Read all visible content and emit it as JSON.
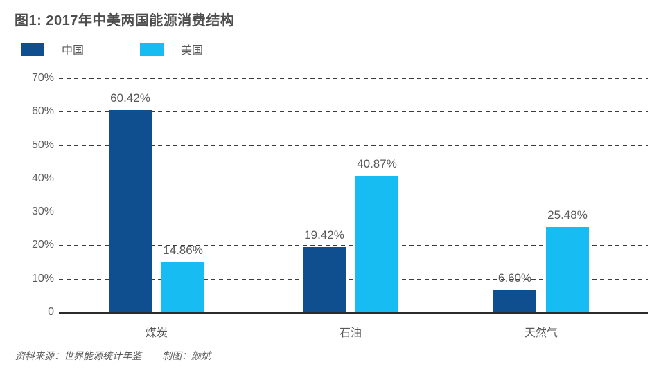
{
  "title": "图1: 2017年中美两国能源消费结构",
  "legend": {
    "items": [
      {
        "label": "中国",
        "color": "#0f4f90"
      },
      {
        "label": "美国",
        "color": "#16bcf2"
      }
    ]
  },
  "footer": {
    "source": "资料来源：世界能源统计年鉴",
    "credit": "制图：颜斌"
  },
  "colors": {
    "china_bar": "#0f4f90",
    "us_bar": "#16bcf2",
    "text_gray": "#595959",
    "title_gray": "#4d4d4d"
  },
  "chart_data": {
    "type": "bar",
    "title": "图1: 2017年中美两国能源消费结构",
    "categories": [
      "煤炭",
      "石油",
      "天然气"
    ],
    "series": [
      {
        "name": "中国",
        "color": "#0f4f90",
        "values": [
          60.42,
          19.42,
          6.6
        ]
      },
      {
        "name": "美国",
        "color": "#16bcf2",
        "values": [
          14.86,
          40.87,
          25.48
        ]
      }
    ],
    "labels": [
      [
        "60.42%",
        "19.42%",
        "6.60%"
      ],
      [
        "14.86%",
        "40.87%",
        "25.48%"
      ]
    ],
    "yticks": [
      {
        "label": "70%",
        "value": 70
      },
      {
        "label": "60%",
        "value": 60
      },
      {
        "label": "50%",
        "value": 50
      },
      {
        "label": "40%",
        "value": 40
      },
      {
        "label": "30%",
        "value": 30
      },
      {
        "label": "20%",
        "value": 20
      },
      {
        "label": "10%",
        "value": 10
      },
      {
        "label": "0",
        "value": 0
      }
    ],
    "ylim": [
      0,
      70
    ],
    "xlabel": "",
    "ylabel": "",
    "grid": "horizontal-dashed",
    "legend_position": "top-left"
  }
}
